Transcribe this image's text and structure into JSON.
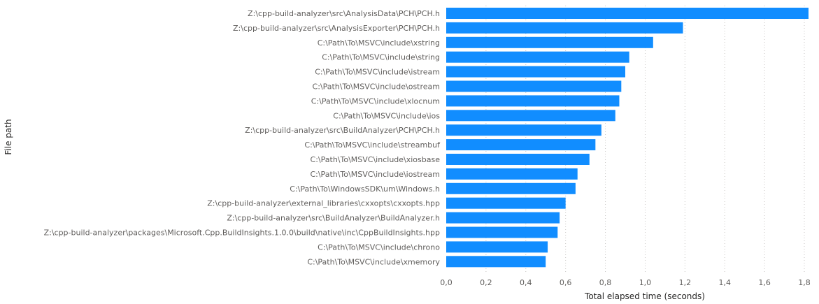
{
  "chart_data": {
    "type": "bar",
    "orientation": "horizontal",
    "categories": [
      "Z:\\cpp-build-analyzer\\src\\AnalysisData\\PCH\\PCH.h",
      "Z:\\cpp-build-analyzer\\src\\AnalysisExporter\\PCH\\PCH.h",
      "C:\\Path\\To\\MSVC\\include\\xstring",
      "C:\\Path\\To\\MSVC\\include\\string",
      "C:\\Path\\To\\MSVC\\include\\istream",
      "C:\\Path\\To\\MSVC\\include\\ostream",
      "C:\\Path\\To\\MSVC\\include\\xlocnum",
      "C:\\Path\\To\\MSVC\\include\\ios",
      "Z:\\cpp-build-analyzer\\src\\BuildAnalyzer\\PCH\\PCH.h",
      "C:\\Path\\To\\MSVC\\include\\streambuf",
      "C:\\Path\\To\\MSVC\\include\\xiosbase",
      "C:\\Path\\To\\MSVC\\include\\iostream",
      "C:\\Path\\To\\WindowsSDK\\um\\Windows.h",
      "Z:\\cpp-build-analyzer\\external_libraries\\cxxopts\\cxxopts.hpp",
      "Z:\\cpp-build-analyzer\\src\\BuildAnalyzer\\BuildAnalyzer.h",
      "Z:\\cpp-build-analyzer\\packages\\Microsoft.Cpp.BuildInsights.1.0.0\\build\\native\\inc\\CppBuildInsights.hpp",
      "C:\\Path\\To\\MSVC\\include\\chrono",
      "C:\\Path\\To\\MSVC\\include\\xmemory"
    ],
    "values": [
      1.83,
      1.19,
      1.04,
      0.92,
      0.9,
      0.88,
      0.87,
      0.85,
      0.78,
      0.75,
      0.72,
      0.66,
      0.65,
      0.6,
      0.57,
      0.56,
      0.51,
      0.5
    ],
    "xlabel": "Total elapsed time (seconds)",
    "ylabel": "File path",
    "xlim": [
      0,
      1.8
    ],
    "xticks": [
      "0,0",
      "0,2",
      "0,4",
      "0,6",
      "0,8",
      "1,0",
      "1,2",
      "1,4",
      "1,6",
      "1,8"
    ],
    "xtick_values": [
      0,
      0.2,
      0.4,
      0.6,
      0.8,
      1.0,
      1.2,
      1.4,
      1.6,
      1.8
    ],
    "grid": true,
    "bar_color": "#118dff",
    "gridline_color": "#c8c6c4",
    "label_color": "#605e5c",
    "title_color": "#252423"
  }
}
